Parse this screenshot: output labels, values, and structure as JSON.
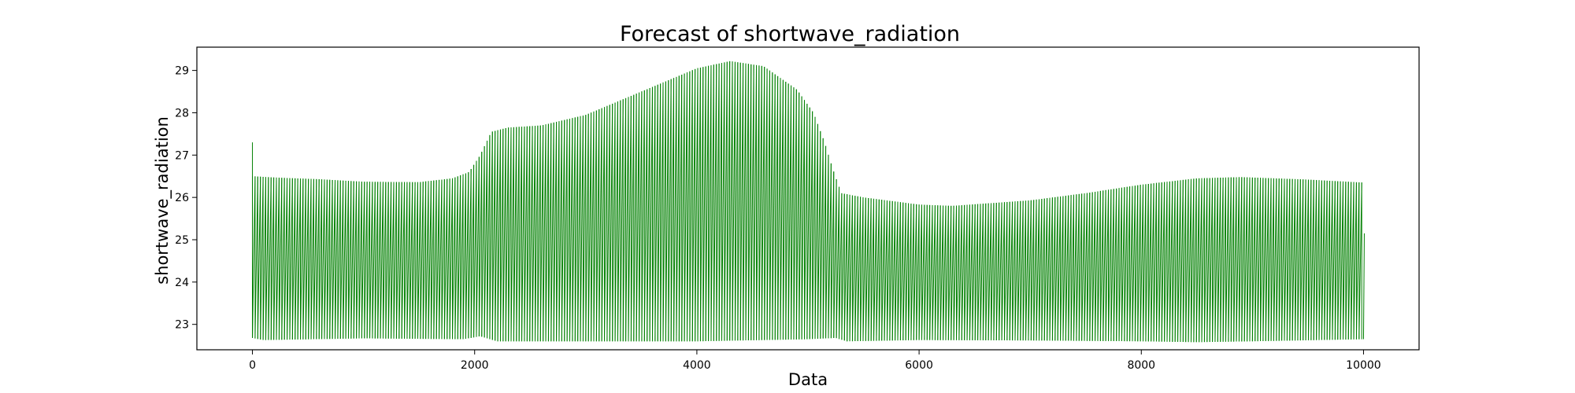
{
  "chart_data": {
    "type": "line",
    "title": "Forecast of shortwave_radiation",
    "xlabel": "Data",
    "ylabel": "shortwave_radiation",
    "xlim": [
      -500,
      10500
    ],
    "ylim": [
      22.4,
      29.55
    ],
    "xticks": [
      0,
      2000,
      4000,
      6000,
      8000,
      10000
    ],
    "xtick_labels": [
      "0",
      "2000",
      "4000",
      "6000",
      "8000",
      "10000"
    ],
    "yticks": [
      23,
      24,
      25,
      26,
      27,
      28,
      29
    ],
    "ytick_labels": [
      "23",
      "24",
      "25",
      "26",
      "27",
      "28",
      "29"
    ],
    "grid": false,
    "series": [
      {
        "name": "shortwave_radiation",
        "color": "#008000",
        "x_range": [
          0,
          10000
        ],
        "oscillation_period": 24,
        "start_value": 27.3,
        "end_value": 25.15,
        "upper_envelope": [
          {
            "x": 0,
            "y": 26.5
          },
          {
            "x": 200,
            "y": 26.47
          },
          {
            "x": 600,
            "y": 26.43
          },
          {
            "x": 1000,
            "y": 26.37
          },
          {
            "x": 1500,
            "y": 26.36
          },
          {
            "x": 1800,
            "y": 26.45
          },
          {
            "x": 1950,
            "y": 26.6
          },
          {
            "x": 2050,
            "y": 27.0
          },
          {
            "x": 2150,
            "y": 27.55
          },
          {
            "x": 2300,
            "y": 27.65
          },
          {
            "x": 2600,
            "y": 27.7
          },
          {
            "x": 3000,
            "y": 27.95
          },
          {
            "x": 3500,
            "y": 28.5
          },
          {
            "x": 4000,
            "y": 29.05
          },
          {
            "x": 4300,
            "y": 29.22
          },
          {
            "x": 4600,
            "y": 29.1
          },
          {
            "x": 4900,
            "y": 28.55
          },
          {
            "x": 5050,
            "y": 28.0
          },
          {
            "x": 5150,
            "y": 27.3
          },
          {
            "x": 5220,
            "y": 26.7
          },
          {
            "x": 5300,
            "y": 26.1
          },
          {
            "x": 5500,
            "y": 26.0
          },
          {
            "x": 6000,
            "y": 25.83
          },
          {
            "x": 6300,
            "y": 25.8
          },
          {
            "x": 7000,
            "y": 25.93
          },
          {
            "x": 7500,
            "y": 26.1
          },
          {
            "x": 8000,
            "y": 26.3
          },
          {
            "x": 8500,
            "y": 26.45
          },
          {
            "x": 8900,
            "y": 26.48
          },
          {
            "x": 9500,
            "y": 26.42
          },
          {
            "x": 10000,
            "y": 26.35
          }
        ],
        "lower_envelope": [
          {
            "x": 0,
            "y": 22.68
          },
          {
            "x": 100,
            "y": 22.63
          },
          {
            "x": 1000,
            "y": 22.67
          },
          {
            "x": 1900,
            "y": 22.65
          },
          {
            "x": 2050,
            "y": 22.72
          },
          {
            "x": 2200,
            "y": 22.6
          },
          {
            "x": 3000,
            "y": 22.6
          },
          {
            "x": 4000,
            "y": 22.6
          },
          {
            "x": 5000,
            "y": 22.65
          },
          {
            "x": 5250,
            "y": 22.68
          },
          {
            "x": 5350,
            "y": 22.6
          },
          {
            "x": 6000,
            "y": 22.63
          },
          {
            "x": 7000,
            "y": 22.62
          },
          {
            "x": 8000,
            "y": 22.6
          },
          {
            "x": 8500,
            "y": 22.58
          },
          {
            "x": 9000,
            "y": 22.6
          },
          {
            "x": 10000,
            "y": 22.65
          }
        ]
      }
    ]
  }
}
